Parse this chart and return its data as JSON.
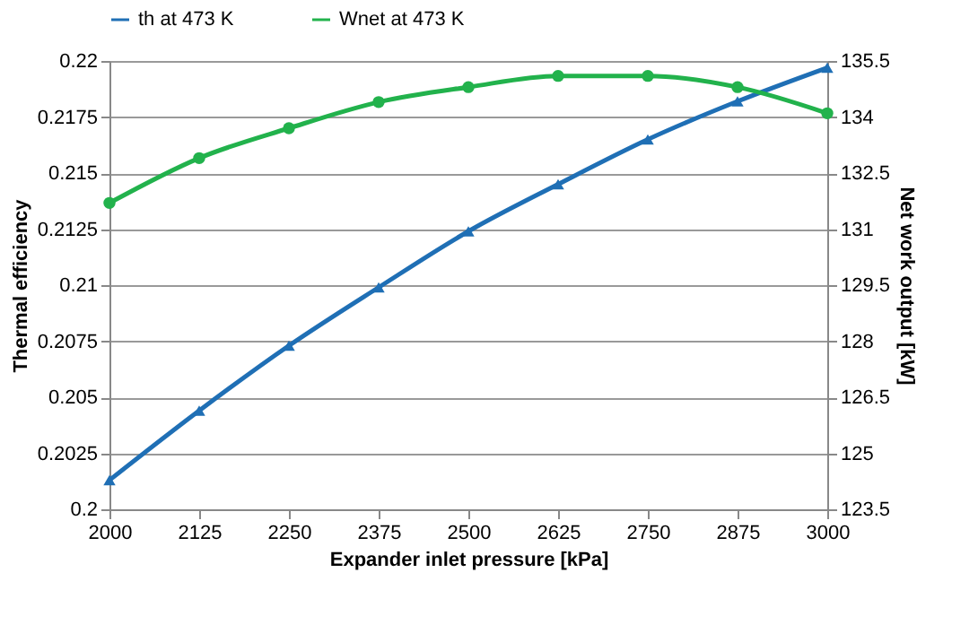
{
  "chart_data": {
    "type": "line",
    "xlabel": "Expander inlet pressure [kPa]",
    "ylabel": "Thermal efficiency",
    "y2label": "Net work output [kW]",
    "x": [
      2000,
      2125,
      2250,
      2375,
      2500,
      2625,
      2750,
      2875,
      3000
    ],
    "series": [
      {
        "name": "th at 473 K",
        "color": "#1f6fb5",
        "marker": "triangle",
        "values": [
          0.2013,
          0.2044,
          0.2073,
          0.2099,
          0.2124,
          0.2145,
          0.2165,
          0.2182,
          0.2197
        ]
      },
      {
        "name": "Wnet at 473 K",
        "color": "#22b24c",
        "marker": "circle",
        "axis": "y2",
        "values": [
          131.7,
          132.9,
          133.7,
          134.4,
          134.8,
          135.1,
          135.1,
          134.8,
          134.1
        ]
      }
    ],
    "xlim": [
      2000,
      3000
    ],
    "xticks": [
      2000,
      2125,
      2250,
      2375,
      2500,
      2625,
      2750,
      2875,
      3000
    ],
    "ylim": [
      0.2,
      0.22
    ],
    "yticks": [
      0.2,
      0.2025,
      0.205,
      0.2075,
      0.21,
      0.2125,
      0.215,
      0.2175,
      0.22
    ],
    "y2lim": [
      123.5,
      135.5
    ],
    "y2ticks": [
      123.5,
      125,
      126.5,
      128,
      129.5,
      131,
      132.5,
      134,
      135.5
    ],
    "grid": "y",
    "legend": "top",
    "line_style": "solid"
  }
}
